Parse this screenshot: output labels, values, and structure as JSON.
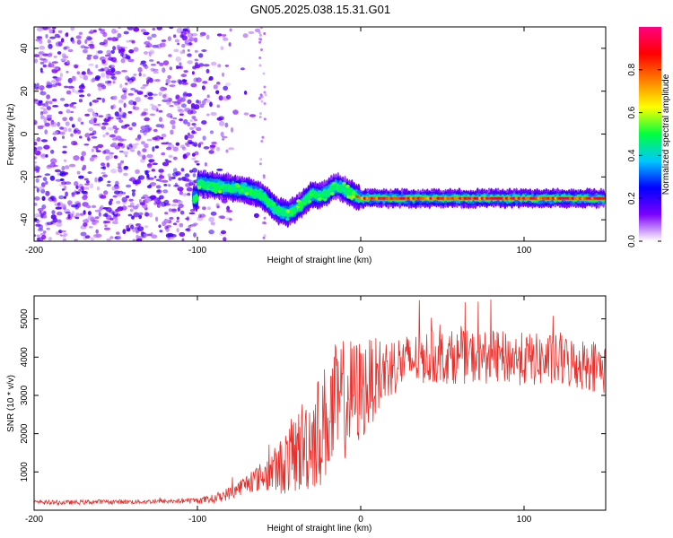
{
  "title": "GN05.2025.038.15.31.G01",
  "chart_data": [
    {
      "type": "heatmap",
      "xlabel": "Height of straight line (km)",
      "ylabel": "Frequency (Hz)",
      "xlim": [
        -200,
        150
      ],
      "ylim": [
        -50,
        50
      ],
      "x_ticks": [
        -200,
        -100,
        0,
        100
      ],
      "y_ticks": [
        -40,
        -20,
        0,
        20,
        40
      ],
      "colorbar": {
        "label": "Normalized spectral amplitude",
        "range": [
          0,
          1
        ],
        "ticks": [
          0.0,
          0.2,
          0.4,
          0.6,
          0.8
        ],
        "colors": [
          "#ffffff",
          "#7b00ff",
          "#0000ff",
          "#00c8ff",
          "#00ff40",
          "#ffff00",
          "#ff8000",
          "#ff0000",
          "#ff0080"
        ]
      },
      "ridge": {
        "x": [
          -100,
          -90,
          -80,
          -70,
          -60,
          -55,
          -50,
          -45,
          -40,
          -35,
          -30,
          -25,
          -20,
          -15,
          -10,
          -5,
          0,
          10,
          20,
          40,
          60,
          80,
          100,
          120,
          150
        ],
        "frequency": [
          -23,
          -24,
          -25,
          -26,
          -29,
          -33,
          -36,
          -37,
          -35,
          -32,
          -28,
          -29,
          -27,
          -24,
          -26,
          -28,
          -30,
          -30,
          -30,
          -30,
          -30,
          -30,
          -30,
          -30,
          -30
        ]
      }
    },
    {
      "type": "line",
      "xlabel": "Height of straight line (km)",
      "ylabel": "SNR (10 * v/v)",
      "xlim": [
        -200,
        150
      ],
      "ylim": [
        0,
        5600
      ],
      "x_ticks": [
        -200,
        -100,
        0,
        100
      ],
      "y_ticks": [
        1000,
        2000,
        3000,
        4000,
        5000
      ],
      "line_color": "#e8302c",
      "series": [
        {
          "x": [
            -200,
            -180,
            -160,
            -140,
            -120,
            -100,
            -90,
            -80,
            -70,
            -60,
            -50,
            -45,
            -40,
            -35,
            -30,
            -25,
            -20,
            -15,
            -10,
            -5,
            0,
            5,
            10,
            20,
            30,
            40,
            50,
            60,
            80,
            100,
            120,
            140,
            150
          ],
          "values": [
            200,
            200,
            220,
            220,
            230,
            250,
            300,
            450,
            700,
            900,
            1100,
            1300,
            1500,
            1700,
            1900,
            2100,
            2400,
            2700,
            2900,
            3000,
            3100,
            3300,
            3500,
            3800,
            3900,
            4000,
            4000,
            4000,
            4000,
            3950,
            3900,
            3800,
            3700
          ],
          "noise_amplitude": [
            60,
            60,
            60,
            60,
            60,
            80,
            120,
            180,
            250,
            400,
            700,
            900,
            1100,
            1300,
            1400,
            1500,
            1600,
            1700,
            1600,
            1500,
            1400,
            1200,
            1000,
            800,
            700,
            700,
            700,
            700,
            700,
            700,
            700,
            700,
            700
          ]
        }
      ]
    }
  ]
}
